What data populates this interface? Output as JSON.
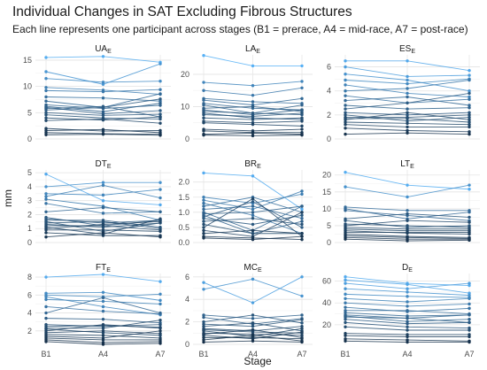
{
  "title": "Individual Changes in SAT Excluding Fibrous Structures",
  "subtitle": "Each line represents one participant across stages (B1 = prerace, A4 = mid-race, A7 = post-race)",
  "chart_data": {
    "type": "line",
    "layout": "facet-grid-3x3",
    "xlabel": "Stage",
    "ylabel": "mm",
    "x": [
      "B1",
      "A4",
      "A7"
    ],
    "grid": true,
    "color_scale": {
      "low": "#132b43",
      "high": "#56b1f7"
    },
    "panels": [
      {
        "name": "UA",
        "sub": "E",
        "ylim": [
          0,
          16
        ],
        "yticks": [
          0,
          5,
          10,
          15
        ],
        "series": [
          [
            15.5,
            15.7,
            14.6
          ],
          [
            12.8,
            10.4,
            14.3
          ],
          [
            11.5,
            10.8,
            11.0
          ],
          [
            9.8,
            9.3,
            8.5
          ],
          [
            9.2,
            9.0,
            9.4
          ],
          [
            8.0,
            7.8,
            7.2
          ],
          [
            7.2,
            6.0,
            8.6
          ],
          [
            6.5,
            5.8,
            6.4
          ],
          [
            6.2,
            5.2,
            6.8
          ],
          [
            6.0,
            4.8,
            5.4
          ],
          [
            5.8,
            6.2,
            4.2
          ],
          [
            5.5,
            6.0,
            7.6
          ],
          [
            5.0,
            4.5,
            4.7
          ],
          [
            4.6,
            4.0,
            3.8
          ],
          [
            4.0,
            3.6,
            4.2
          ],
          [
            3.5,
            3.8,
            3.0
          ],
          [
            2.0,
            1.5,
            1.6
          ],
          [
            1.6,
            1.8,
            1.2
          ],
          [
            1.2,
            1.0,
            0.9
          ],
          [
            0.8,
            0.9,
            0.7
          ]
        ]
      },
      {
        "name": "LA",
        "sub": "E",
        "ylim": [
          0,
          26
        ],
        "yticks": [
          0,
          10,
          20
        ],
        "series": [
          [
            25.8,
            22.6,
            22.6
          ],
          [
            17.5,
            16.5,
            17.8
          ],
          [
            15.0,
            13.5,
            15.8
          ],
          [
            12.5,
            11.5,
            11.0
          ],
          [
            12.0,
            10.5,
            12.5
          ],
          [
            11.0,
            9.5,
            9.0
          ],
          [
            10.5,
            8.0,
            10.5
          ],
          [
            9.5,
            10.0,
            8.5
          ],
          [
            9.0,
            7.5,
            9.0
          ],
          [
            8.5,
            8.0,
            7.5
          ],
          [
            8.0,
            6.5,
            6.0
          ],
          [
            7.5,
            7.0,
            8.0
          ],
          [
            6.5,
            6.0,
            6.5
          ],
          [
            5.5,
            5.0,
            5.5
          ],
          [
            5.0,
            4.5,
            4.0
          ],
          [
            3.0,
            2.5,
            3.0
          ],
          [
            2.5,
            2.0,
            2.0
          ],
          [
            1.5,
            1.8,
            1.5
          ],
          [
            1.2,
            1.0,
            1.2
          ]
        ]
      },
      {
        "name": "ES",
        "sub": "E",
        "ylim": [
          0,
          7
        ],
        "yticks": [
          0,
          2,
          4,
          6
        ],
        "series": [
          [
            6.5,
            6.5,
            5.7
          ],
          [
            6.0,
            5.2,
            5.3
          ],
          [
            5.4,
            4.9,
            4.0
          ],
          [
            4.9,
            4.6,
            5.0
          ],
          [
            4.5,
            3.8,
            3.5
          ],
          [
            4.0,
            4.2,
            4.9
          ],
          [
            3.6,
            3.0,
            3.3
          ],
          [
            3.2,
            3.5,
            2.8
          ],
          [
            2.8,
            2.5,
            2.6
          ],
          [
            2.5,
            3.0,
            3.8
          ],
          [
            2.2,
            2.0,
            2.2
          ],
          [
            2.0,
            1.5,
            1.8
          ],
          [
            1.8,
            1.8,
            2.0
          ],
          [
            1.7,
            1.7,
            1.4
          ],
          [
            1.6,
            2.2,
            1.6
          ],
          [
            1.4,
            1.3,
            1.2
          ],
          [
            1.2,
            1.0,
            1.0
          ],
          [
            0.9,
            0.7,
            0.6
          ],
          [
            0.4,
            0.5,
            0.4
          ]
        ]
      },
      {
        "name": "DT",
        "sub": "E",
        "ylim": [
          0,
          5.2
        ],
        "yticks": [
          0,
          1,
          2,
          3,
          4,
          5
        ],
        "series": [
          [
            4.9,
            3.0,
            2.7
          ],
          [
            4.0,
            4.3,
            4.3
          ],
          [
            3.5,
            3.4,
            3.8
          ],
          [
            3.3,
            4.1,
            3.2
          ],
          [
            3.1,
            2.6,
            1.6
          ],
          [
            2.8,
            2.1,
            2.2
          ],
          [
            2.2,
            2.5,
            2.2
          ],
          [
            1.8,
            1.2,
            1.6
          ],
          [
            1.7,
            1.4,
            1.6
          ],
          [
            1.6,
            1.6,
            1.1
          ],
          [
            1.5,
            0.8,
            1.4
          ],
          [
            1.4,
            1.5,
            1.0
          ],
          [
            1.3,
            1.1,
            1.4
          ],
          [
            1.2,
            1.2,
            0.9
          ],
          [
            1.1,
            0.6,
            1.7
          ],
          [
            1.0,
            1.3,
            1.5
          ],
          [
            0.9,
            0.9,
            0.8
          ],
          [
            0.7,
            0.5,
            0.5
          ],
          [
            0.4,
            0.7,
            0.4
          ]
        ]
      },
      {
        "name": "BR",
        "sub": "E",
        "ylim": [
          0,
          2.4
        ],
        "yticks": [
          0.0,
          0.5,
          1.0,
          1.5,
          2.0
        ],
        "series": [
          [
            2.3,
            2.2,
            1.1
          ],
          [
            1.5,
            1.3,
            1.6
          ],
          [
            1.4,
            1.1,
            1.7
          ],
          [
            1.3,
            0.9,
            0.3
          ],
          [
            1.2,
            1.5,
            1.0
          ],
          [
            1.1,
            1.2,
            0.8
          ],
          [
            1.0,
            0.4,
            1.2
          ],
          [
            0.95,
            1.0,
            1.2
          ],
          [
            0.9,
            0.3,
            0.7
          ],
          [
            0.85,
            1.35,
            0.5
          ],
          [
            0.8,
            0.6,
            0.9
          ],
          [
            0.7,
            0.8,
            0.6
          ],
          [
            0.6,
            0.3,
            0.3
          ],
          [
            0.5,
            1.45,
            0.2
          ],
          [
            0.4,
            0.2,
            1.0
          ],
          [
            0.3,
            0.4,
            0.3
          ],
          [
            0.2,
            0.15,
            0.1
          ],
          [
            0.15,
            0.1,
            0.2
          ]
        ]
      },
      {
        "name": "LT",
        "sub": "E",
        "ylim": [
          0,
          21.5
        ],
        "yticks": [
          0,
          5,
          10,
          15,
          20
        ],
        "series": [
          [
            20.8,
            17.0,
            15.8
          ],
          [
            16.5,
            13.5,
            17.0
          ],
          [
            10.5,
            9.5,
            9.5
          ],
          [
            10.0,
            7.0,
            9.0
          ],
          [
            9.5,
            8.0,
            6.5
          ],
          [
            7.0,
            8.5,
            7.5
          ],
          [
            6.5,
            4.5,
            5.0
          ],
          [
            5.5,
            5.0,
            4.5
          ],
          [
            5.0,
            6.5,
            6.0
          ],
          [
            4.5,
            4.0,
            4.0
          ],
          [
            4.0,
            3.5,
            3.5
          ],
          [
            3.5,
            2.8,
            2.5
          ],
          [
            3.0,
            3.0,
            3.0
          ],
          [
            2.5,
            1.8,
            1.5
          ],
          [
            2.0,
            1.5,
            1.2
          ],
          [
            1.5,
            1.0,
            1.0
          ],
          [
            1.0,
            0.5,
            0.7
          ]
        ]
      },
      {
        "name": "FT",
        "sub": "E",
        "ylim": [
          0.5,
          8.4
        ],
        "yticks": [
          2,
          4,
          6,
          8
        ],
        "series": [
          [
            8.0,
            8.3,
            7.5
          ],
          [
            6.2,
            6.3,
            5.4
          ],
          [
            6.0,
            5.8,
            6.1
          ],
          [
            5.8,
            4.7,
            3.8
          ],
          [
            5.5,
            5.3,
            5.0
          ],
          [
            4.7,
            4.2,
            3.9
          ],
          [
            4.0,
            5.7,
            4.0
          ],
          [
            3.4,
            3.3,
            2.9
          ],
          [
            2.7,
            2.5,
            2.7
          ],
          [
            2.5,
            2.6,
            2.4
          ],
          [
            2.3,
            2.3,
            3.2
          ],
          [
            2.2,
            1.8,
            1.5
          ],
          [
            2.0,
            2.7,
            2.3
          ],
          [
            1.8,
            2.0,
            1.7
          ],
          [
            1.6,
            1.5,
            1.2
          ],
          [
            1.4,
            1.2,
            2.0
          ],
          [
            1.2,
            1.0,
            1.0
          ],
          [
            1.0,
            0.7,
            0.8
          ],
          [
            0.8,
            0.5,
            0.6
          ]
        ]
      },
      {
        "name": "MC",
        "sub": "E",
        "ylim": [
          0,
          6.3
        ],
        "yticks": [
          0,
          2,
          4,
          6
        ],
        "series": [
          [
            5.5,
            3.7,
            6.0
          ],
          [
            4.9,
            5.8,
            4.3
          ],
          [
            2.6,
            2.3,
            2.6
          ],
          [
            2.4,
            1.8,
            2.3
          ],
          [
            2.0,
            2.6,
            1.9
          ],
          [
            1.8,
            1.6,
            2.2
          ],
          [
            1.6,
            1.9,
            1.2
          ],
          [
            1.4,
            1.2,
            1.6
          ],
          [
            1.3,
            1.1,
            1.0
          ],
          [
            1.2,
            0.7,
            1.4
          ],
          [
            1.0,
            0.9,
            0.8
          ],
          [
            0.9,
            1.3,
            0.6
          ],
          [
            0.8,
            0.5,
            1.1
          ],
          [
            0.6,
            0.6,
            0.5
          ],
          [
            0.4,
            0.8,
            0.3
          ],
          [
            0.2,
            0.3,
            0.2
          ]
        ]
      },
      {
        "name": "D",
        "sub": "E",
        "ylim": [
          2,
          67
        ],
        "yticks": [
          20,
          40,
          60
        ],
        "series": [
          [
            64,
            58,
            56
          ],
          [
            61,
            57,
            49
          ],
          [
            58,
            53,
            58
          ],
          [
            53,
            50,
            47
          ],
          [
            48,
            46,
            45
          ],
          [
            44,
            41,
            44
          ],
          [
            40,
            37,
            39
          ],
          [
            36,
            32,
            35
          ],
          [
            33,
            33,
            30
          ],
          [
            31,
            28,
            29
          ],
          [
            29,
            26,
            29
          ],
          [
            28,
            23,
            25
          ],
          [
            27,
            26,
            22
          ],
          [
            25,
            21,
            22
          ],
          [
            22,
            18,
            17
          ],
          [
            18,
            15,
            15
          ],
          [
            12,
            11,
            11
          ],
          [
            10,
            9,
            9
          ],
          [
            7,
            6,
            5
          ],
          [
            5,
            4,
            4
          ]
        ]
      }
    ]
  }
}
